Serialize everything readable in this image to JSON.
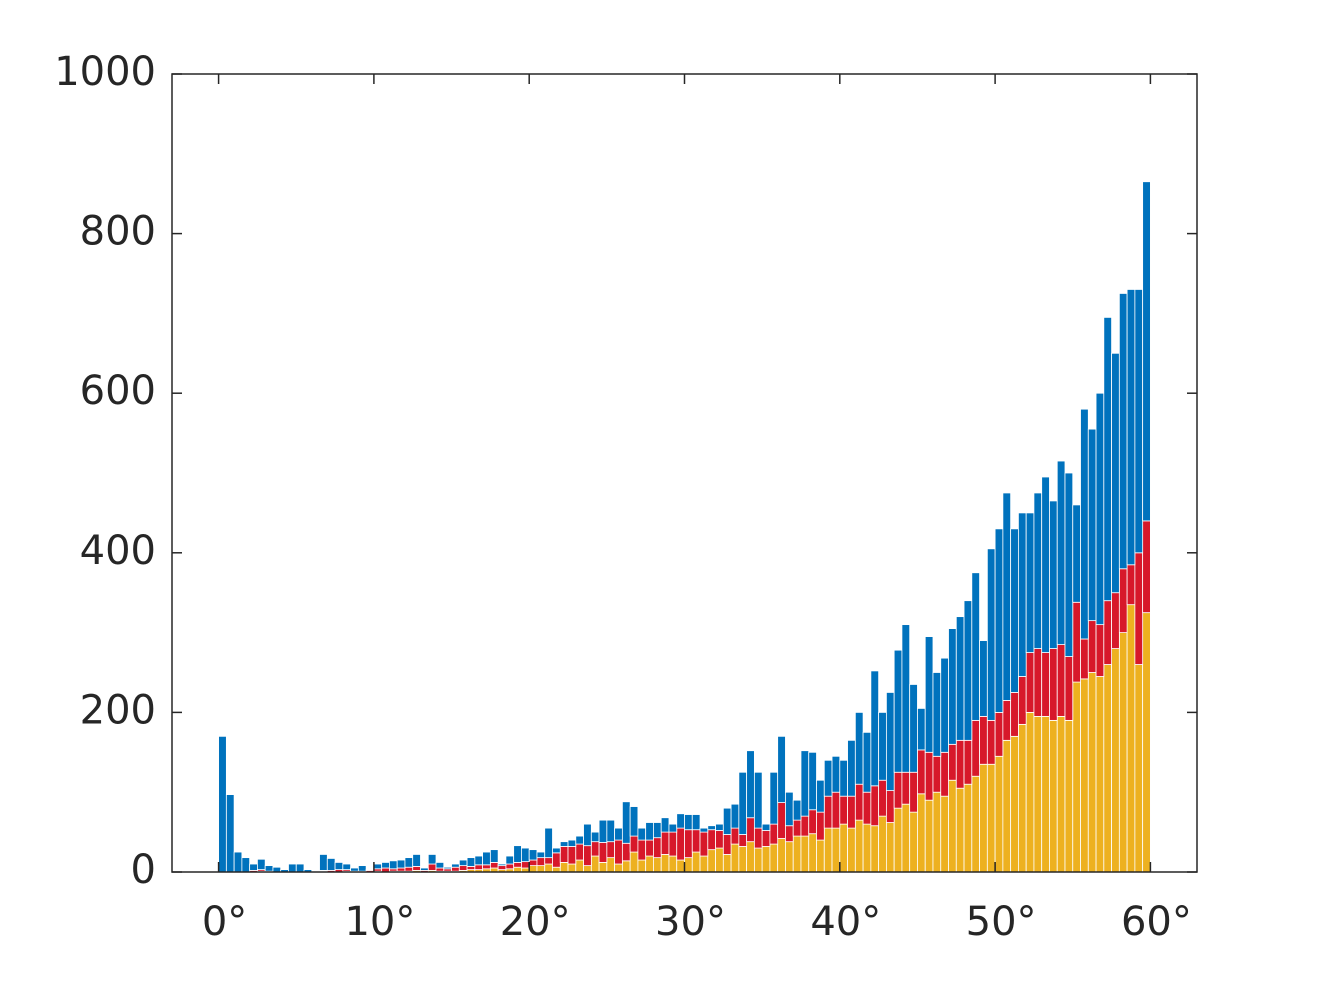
{
  "chart_data": {
    "type": "histogram",
    "stacked": true,
    "bins": [
      0,
      0.5,
      1,
      1.5,
      2,
      2.5,
      3,
      3.5,
      4,
      4.5,
      5,
      5.5,
      6,
      6.5,
      7,
      7.5,
      8,
      8.5,
      9,
      9.5,
      10,
      10.5,
      11,
      11.5,
      12,
      12.5,
      13,
      13.5,
      14,
      14.5,
      15,
      15.5,
      16,
      16.5,
      17,
      17.5,
      18,
      18.5,
      19,
      19.5,
      20,
      20.5,
      21,
      21.5,
      22,
      22.5,
      23,
      23.5,
      24,
      24.5,
      25,
      25.5,
      26,
      26.5,
      27,
      27.5,
      28,
      28.5,
      29,
      29.5,
      30,
      30.5,
      31,
      31.5,
      32,
      32.5,
      33,
      33.5,
      34,
      34.5,
      35,
      35.5,
      36,
      36.5,
      37,
      37.5,
      38,
      38.5,
      39,
      39.5,
      40,
      40.5,
      41,
      41.5,
      42,
      42.5,
      43,
      43.5,
      44,
      44.5,
      45,
      45.5,
      46,
      46.5,
      47,
      47.5,
      48,
      48.5,
      49,
      49.5,
      50,
      50.5,
      51,
      51.5,
      52,
      52.5,
      53,
      53.5,
      54,
      54.5,
      55,
      55.5,
      56,
      56.5,
      57,
      57.5,
      58,
      58.5,
      59,
      59.5,
      60
    ],
    "series": [
      {
        "color": "#edb120",
        "values": [
          0,
          0,
          0,
          0,
          0,
          1,
          0,
          0,
          0,
          0,
          0,
          0,
          0,
          1,
          0,
          0,
          1,
          0,
          0,
          0,
          1,
          0,
          1,
          1,
          1,
          2,
          0,
          2,
          1,
          1,
          1,
          2,
          3,
          3,
          4,
          5,
          3,
          4,
          6,
          5,
          8,
          8,
          10,
          6,
          12,
          10,
          15,
          8,
          20,
          12,
          18,
          10,
          14,
          25,
          15,
          20,
          18,
          22,
          20,
          15,
          18,
          25,
          20,
          28,
          30,
          22,
          35,
          32,
          38,
          30,
          32,
          35,
          42,
          38,
          45,
          45,
          48,
          40,
          55,
          55,
          60,
          55,
          65,
          60,
          58,
          70,
          62,
          80,
          85,
          75,
          98,
          90,
          100,
          95,
          115,
          105,
          110,
          120,
          135,
          135,
          145,
          165,
          170,
          185,
          200,
          195,
          195,
          190,
          195,
          190,
          238,
          242,
          250,
          245,
          260,
          280,
          300,
          335,
          260,
          325
        ]
      },
      {
        "color": "#d7182a",
        "values": [
          0,
          0,
          0,
          0,
          2,
          2,
          1,
          0,
          0,
          0,
          0,
          0,
          0,
          1,
          2,
          3,
          2,
          1,
          1,
          2,
          3,
          5,
          3,
          4,
          5,
          5,
          2,
          8,
          4,
          3,
          5,
          6,
          4,
          6,
          5,
          7,
          5,
          6,
          6,
          8,
          7,
          10,
          8,
          18,
          20,
          22,
          20,
          25,
          18,
          25,
          20,
          30,
          22,
          20,
          25,
          20,
          25,
          28,
          30,
          40,
          35,
          28,
          30,
          25,
          22,
          25,
          20,
          15,
          30,
          25,
          20,
          25,
          45,
          20,
          20,
          25,
          30,
          35,
          40,
          45,
          35,
          40,
          45,
          40,
          50,
          45,
          40,
          45,
          40,
          50,
          55,
          60,
          45,
          55,
          45,
          60,
          55,
          70,
          60,
          55,
          55,
          50,
          55,
          60,
          75,
          85,
          80,
          90,
          90,
          80,
          100,
          50,
          65,
          65,
          80,
          70,
          80,
          50,
          140,
          115
        ]
      },
      {
        "color": "#0072bd",
        "values": [
          170,
          97,
          25,
          18,
          8,
          13,
          7,
          6,
          3,
          10,
          10,
          3,
          0,
          20,
          15,
          9,
          7,
          4,
          7,
          1,
          6,
          7,
          10,
          10,
          12,
          15,
          3,
          12,
          7,
          2,
          4,
          7,
          11,
          11,
          16,
          16,
          2,
          10,
          21,
          17,
          13,
          7,
          37,
          6,
          6,
          8,
          10,
          27,
          12,
          28,
          27,
          15,
          52,
          37,
          15,
          22,
          19,
          18,
          10,
          18,
          19,
          19,
          5,
          5,
          8,
          33,
          30,
          78,
          84,
          70,
          8,
          65,
          83,
          42,
          25,
          82,
          72,
          40,
          45,
          45,
          45,
          70,
          90,
          75,
          144,
          85,
          123,
          153,
          185,
          110,
          52,
          145,
          105,
          118,
          145,
          155,
          175,
          185,
          95,
          215,
          230,
          260,
          205,
          205,
          175,
          195,
          220,
          185,
          230,
          230,
          122,
          288,
          240,
          290,
          355,
          300,
          345,
          345,
          330,
          425
        ]
      }
    ],
    "xlim": [
      -3,
      63
    ],
    "ylim": [
      0,
      1000
    ],
    "xticks": [
      {
        "value": 0,
        "label": "0°"
      },
      {
        "value": 10,
        "label": "10°"
      },
      {
        "value": 20,
        "label": "20°"
      },
      {
        "value": 30,
        "label": "30°"
      },
      {
        "value": 40,
        "label": "40°"
      },
      {
        "value": 50,
        "label": "50°"
      },
      {
        "value": 60,
        "label": "60°"
      }
    ],
    "yticks": [
      0,
      200,
      400,
      600,
      800,
      1000
    ]
  }
}
